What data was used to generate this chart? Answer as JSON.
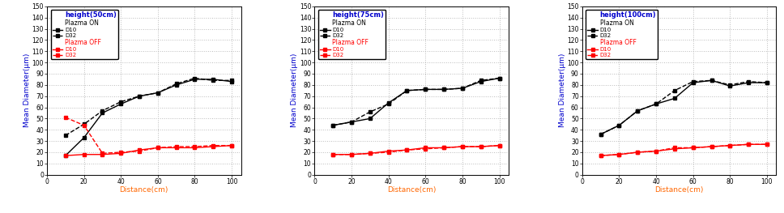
{
  "panels": [
    {
      "title": "height(50cm)",
      "plasma_on_D10_x": [
        10,
        20,
        30,
        40,
        50,
        60,
        70,
        80,
        90,
        100
      ],
      "plasma_on_D10_y": [
        17,
        33,
        55,
        63,
        70,
        73,
        80,
        85,
        85,
        83
      ],
      "plasma_on_D32_x": [
        10,
        20,
        30,
        40,
        50,
        60,
        70,
        80,
        90,
        100
      ],
      "plasma_on_D32_y": [
        35,
        45,
        57,
        65,
        70,
        73,
        81,
        86,
        84,
        84
      ],
      "plasma_off_D10_x": [
        10,
        20,
        30,
        40,
        50,
        60,
        70,
        80,
        90,
        100
      ],
      "plasma_off_D10_y": [
        17,
        18,
        18,
        19,
        22,
        24,
        24,
        24,
        25,
        26
      ],
      "plasma_off_D32_x": [
        10,
        20,
        30,
        40,
        50,
        60,
        70,
        80,
        90,
        100
      ],
      "plasma_off_D32_y": [
        51,
        44,
        19,
        20,
        21,
        24,
        25,
        25,
        26,
        26
      ]
    },
    {
      "title": "height(75cm)",
      "plasma_on_D10_x": [
        10,
        20,
        30,
        40,
        50,
        60,
        70,
        80,
        90,
        100
      ],
      "plasma_on_D10_y": [
        44,
        47,
        50,
        64,
        75,
        76,
        76,
        77,
        83,
        86
      ],
      "plasma_on_D32_x": [
        10,
        20,
        30,
        40,
        50,
        60,
        70,
        80,
        90,
        100
      ],
      "plasma_on_D32_y": [
        44,
        47,
        56,
        63,
        75,
        76,
        76,
        77,
        84,
        86
      ],
      "plasma_off_D10_x": [
        10,
        20,
        30,
        40,
        50,
        60,
        70,
        80,
        90,
        100
      ],
      "plasma_off_D10_y": [
        18,
        18,
        19,
        21,
        22,
        24,
        24,
        25,
        25,
        26
      ],
      "plasma_off_D32_x": [
        10,
        20,
        30,
        40,
        50,
        60,
        70,
        80,
        90,
        100
      ],
      "plasma_off_D32_y": [
        18,
        18,
        19,
        20,
        22,
        23,
        24,
        25,
        25,
        26
      ]
    },
    {
      "title": "height(100cm)",
      "plasma_on_D10_x": [
        10,
        20,
        30,
        40,
        50,
        60,
        70,
        80,
        90,
        100
      ],
      "plasma_on_D10_y": [
        36,
        44,
        57,
        63,
        68,
        82,
        84,
        79,
        82,
        82
      ],
      "plasma_on_D32_x": [
        10,
        20,
        30,
        40,
        50,
        60,
        70,
        80,
        90,
        100
      ],
      "plasma_on_D32_y": [
        36,
        44,
        57,
        63,
        75,
        83,
        84,
        80,
        83,
        82
      ],
      "plasma_off_D10_x": [
        10,
        20,
        30,
        40,
        50,
        60,
        70,
        80,
        90,
        100
      ],
      "plasma_off_D10_y": [
        17,
        18,
        20,
        21,
        23,
        24,
        25,
        26,
        27,
        27
      ],
      "plasma_off_D32_x": [
        10,
        20,
        30,
        40,
        50,
        60,
        70,
        80,
        90,
        100
      ],
      "plasma_off_D32_y": [
        17,
        18,
        20,
        21,
        24,
        24,
        25,
        26,
        27,
        27
      ]
    }
  ],
  "xlabel": "Distance(cm)",
  "ylabel": "Mean Diameter(μm)",
  "xlim": [
    0,
    105
  ],
  "ylim": [
    0,
    150
  ],
  "xticks": [
    0,
    20,
    40,
    60,
    80,
    100
  ],
  "yticks": [
    0,
    10,
    20,
    30,
    40,
    50,
    60,
    70,
    80,
    90,
    100,
    110,
    120,
    130,
    140,
    150
  ],
  "plasma_on_color": "#000000",
  "plasma_off_color": "#ff0000",
  "title_color": "#0000cc",
  "xlabel_color": "#ff6600",
  "ylabel_color": "#0000cc",
  "legend_title_on_color": "#000000",
  "legend_title_off_color": "#ff0000",
  "grid_color": "#bbbbbb",
  "background_color": "#ffffff"
}
